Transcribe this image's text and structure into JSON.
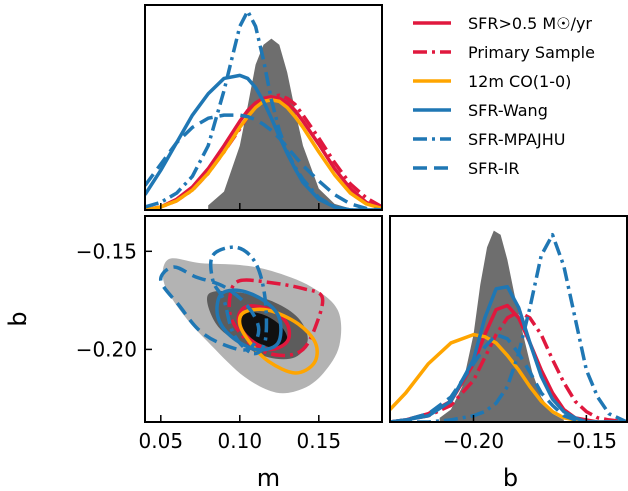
{
  "chart_data": [
    {
      "panel": "top-left",
      "type": "area",
      "description_x": "m",
      "xlim": [
        0.04,
        0.19
      ],
      "x": [
        0.04,
        0.05,
        0.06,
        0.07,
        0.08,
        0.09,
        0.1,
        0.105,
        0.11,
        0.115,
        0.12,
        0.125,
        0.13,
        0.135,
        0.14,
        0.15,
        0.16,
        0.17,
        0.18,
        0.19
      ],
      "series": [
        {
          "name": "SFR>0.5 M☉/yr",
          "color": "#e0183e",
          "style": "solid",
          "values": [
            0.0,
            0.02,
            0.07,
            0.15,
            0.27,
            0.42,
            0.58,
            0.65,
            0.7,
            0.73,
            0.74,
            0.73,
            0.7,
            0.65,
            0.58,
            0.43,
            0.27,
            0.14,
            0.05,
            0.01
          ]
        },
        {
          "name": "Primary Sample",
          "color": "#e0183e",
          "style": "dashdot",
          "values": [
            0.0,
            0.02,
            0.06,
            0.13,
            0.24,
            0.38,
            0.53,
            0.61,
            0.67,
            0.71,
            0.74,
            0.75,
            0.73,
            0.69,
            0.62,
            0.47,
            0.31,
            0.17,
            0.08,
            0.02
          ]
        },
        {
          "name": "12m CO(1-0)",
          "color": "#ffa500",
          "style": "solid",
          "values": [
            0.0,
            0.02,
            0.06,
            0.13,
            0.24,
            0.38,
            0.54,
            0.61,
            0.67,
            0.71,
            0.72,
            0.71,
            0.67,
            0.61,
            0.54,
            0.38,
            0.23,
            0.11,
            0.04,
            0.01
          ]
        },
        {
          "name": "SFR-Wang",
          "color": "#1f77b4",
          "style": "solid",
          "values": [
            0.1,
            0.26,
            0.44,
            0.62,
            0.76,
            0.86,
            0.88,
            0.86,
            0.8,
            0.71,
            0.6,
            0.48,
            0.37,
            0.27,
            0.18,
            0.07,
            0.02,
            0.0,
            0.0,
            0.0
          ]
        },
        {
          "name": "SFR-MPAJHU",
          "color": "#1f77b4",
          "style": "dashdot",
          "values": [
            0.02,
            0.05,
            0.11,
            0.22,
            0.42,
            0.78,
            1.2,
            1.3,
            1.2,
            0.98,
            0.72,
            0.52,
            0.38,
            0.28,
            0.2,
            0.08,
            0.02,
            0.0,
            0.0,
            0.0
          ]
        },
        {
          "name": "SFR-IR",
          "color": "#1f77b4",
          "style": "dashed",
          "values": [
            0.16,
            0.3,
            0.44,
            0.54,
            0.6,
            0.62,
            0.62,
            0.61,
            0.59,
            0.56,
            0.52,
            0.47,
            0.41,
            0.35,
            0.29,
            0.19,
            0.1,
            0.04,
            0.01,
            0.0
          ]
        }
      ],
      "fill_series": {
        "color": "#6e6e6e",
        "x": [
          0.08,
          0.09,
          0.1,
          0.105,
          0.11,
          0.115,
          0.12,
          0.125,
          0.13,
          0.135,
          0.14,
          0.15,
          0.16,
          0.17
        ],
        "values": [
          0.03,
          0.12,
          0.42,
          0.68,
          0.95,
          1.08,
          1.12,
          1.08,
          0.9,
          0.65,
          0.42,
          0.14,
          0.04,
          0.01
        ]
      }
    },
    {
      "panel": "bottom-left",
      "type": "contour",
      "xlabel": "m",
      "ylabel": "b",
      "xlim": [
        0.04,
        0.19
      ],
      "ylim": [
        -0.237,
        -0.132
      ],
      "xticks": [
        0.05,
        0.1,
        0.15
      ],
      "xtick_labels": [
        "0.05",
        "0.10",
        "0.15"
      ],
      "yticks": [
        -0.15,
        -0.2
      ],
      "ytick_labels": [
        "−0.15",
        "−0.20"
      ],
      "filled_contours": [
        {
          "level": "outer",
          "color": "#b3b3b3",
          "points": [
            [
              0.055,
              -0.154
            ],
            [
              0.075,
              -0.156
            ],
            [
              0.1,
              -0.157
            ],
            [
              0.12,
              -0.16
            ],
            [
              0.145,
              -0.168
            ],
            [
              0.162,
              -0.18
            ],
            [
              0.163,
              -0.198
            ],
            [
              0.153,
              -0.212
            ],
            [
              0.14,
              -0.22
            ],
            [
              0.123,
              -0.222
            ],
            [
              0.103,
              -0.214
            ],
            [
              0.082,
              -0.198
            ],
            [
              0.065,
              -0.183
            ],
            [
              0.052,
              -0.166
            ]
          ]
        },
        {
          "level": "middle",
          "color": "#5c5c5c",
          "points": [
            [
              0.08,
              -0.172
            ],
            [
              0.1,
              -0.171
            ],
            [
              0.122,
              -0.176
            ],
            [
              0.137,
              -0.184
            ],
            [
              0.143,
              -0.195
            ],
            [
              0.135,
              -0.204
            ],
            [
              0.118,
              -0.204
            ],
            [
              0.1,
              -0.197
            ],
            [
              0.085,
              -0.187
            ]
          ]
        },
        {
          "level": "inner",
          "color": "#101010",
          "points": [
            [
              0.1,
              -0.181
            ],
            [
              0.114,
              -0.182
            ],
            [
              0.126,
              -0.188
            ],
            [
              0.13,
              -0.196
            ],
            [
              0.12,
              -0.199
            ],
            [
              0.106,
              -0.194
            ],
            [
              0.099,
              -0.187
            ]
          ]
        }
      ],
      "line_contours": [
        {
          "name": "SFR>0.5 M☉/yr",
          "color": "#e0183e",
          "style": "solid",
          "points": [
            [
              0.105,
              -0.178
            ],
            [
              0.12,
              -0.18
            ],
            [
              0.13,
              -0.187
            ],
            [
              0.13,
              -0.196
            ],
            [
              0.118,
              -0.2
            ],
            [
              0.104,
              -0.193
            ],
            [
              0.099,
              -0.184
            ]
          ]
        },
        {
          "name": "Primary Sample",
          "color": "#e0183e",
          "style": "dashdot",
          "points": [
            [
              0.1,
              -0.165
            ],
            [
              0.12,
              -0.166
            ],
            [
              0.14,
              -0.169
            ],
            [
              0.152,
              -0.173
            ],
            [
              0.149,
              -0.186
            ],
            [
              0.14,
              -0.2
            ],
            [
              0.125,
              -0.203
            ],
            [
              0.108,
              -0.198
            ],
            [
              0.095,
              -0.185
            ],
            [
              0.094,
              -0.172
            ]
          ]
        },
        {
          "name": "12m CO(1-0)",
          "color": "#ffa500",
          "style": "solid",
          "points": [
            [
              0.103,
              -0.181
            ],
            [
              0.118,
              -0.18
            ],
            [
              0.137,
              -0.187
            ],
            [
              0.148,
              -0.197
            ],
            [
              0.147,
              -0.207
            ],
            [
              0.135,
              -0.212
            ],
            [
              0.118,
              -0.206
            ],
            [
              0.106,
              -0.196
            ],
            [
              0.1,
              -0.187
            ]
          ]
        },
        {
          "name": "SFR-Wang",
          "color": "#1f77b4",
          "style": "solid",
          "points": [
            [
              0.088,
              -0.172
            ],
            [
              0.1,
              -0.17
            ],
            [
              0.115,
              -0.175
            ],
            [
              0.125,
              -0.184
            ],
            [
              0.124,
              -0.197
            ],
            [
              0.11,
              -0.2
            ],
            [
              0.094,
              -0.193
            ],
            [
              0.086,
              -0.183
            ]
          ]
        },
        {
          "name": "SFR-MPAJHU",
          "color": "#1f77b4",
          "style": "dashdot",
          "points": [
            [
              0.083,
              -0.152
            ],
            [
              0.098,
              -0.148
            ],
            [
              0.11,
              -0.156
            ],
            [
              0.116,
              -0.174
            ],
            [
              0.116,
              -0.196
            ],
            [
              0.108,
              -0.202
            ],
            [
              0.096,
              -0.192
            ],
            [
              0.09,
              -0.175
            ],
            [
              0.083,
              -0.165
            ]
          ]
        },
        {
          "name": "SFR-IR",
          "color": "#1f77b4",
          "style": "dashed",
          "points": [
            [
              0.058,
              -0.158
            ],
            [
              0.072,
              -0.163
            ],
            [
              0.09,
              -0.168
            ],
            [
              0.105,
              -0.178
            ],
            [
              0.112,
              -0.19
            ],
            [
              0.105,
              -0.2
            ],
            [
              0.088,
              -0.197
            ],
            [
              0.074,
              -0.19
            ],
            [
              0.062,
              -0.178
            ],
            [
              0.05,
              -0.165
            ]
          ]
        }
      ]
    },
    {
      "panel": "bottom-right",
      "type": "area",
      "xlabel": "b",
      "xlim": [
        -0.237,
        -0.132
      ],
      "xticks": [
        -0.2,
        -0.15
      ],
      "xtick_labels": [
        "−0.20",
        "−0.15"
      ],
      "x": [
        -0.237,
        -0.23,
        -0.22,
        -0.21,
        -0.2,
        -0.195,
        -0.19,
        -0.185,
        -0.18,
        -0.175,
        -0.17,
        -0.165,
        -0.16,
        -0.155,
        -0.15,
        -0.145,
        -0.14,
        -0.132
      ],
      "series": [
        {
          "name": "SFR>0.5 M☉/yr",
          "color": "#e0183e",
          "style": "solid",
          "values": [
            0.0,
            0.01,
            0.04,
            0.1,
            0.28,
            0.42,
            0.54,
            0.56,
            0.5,
            0.38,
            0.25,
            0.14,
            0.06,
            0.02,
            0.01,
            0.0,
            0.0,
            0.0
          ]
        },
        {
          "name": "Primary Sample",
          "color": "#e0183e",
          "style": "dashdot",
          "values": [
            0.0,
            0.01,
            0.03,
            0.08,
            0.2,
            0.31,
            0.42,
            0.5,
            0.53,
            0.5,
            0.42,
            0.3,
            0.19,
            0.1,
            0.05,
            0.02,
            0.01,
            0.0
          ]
        },
        {
          "name": "12m CO(1-0)",
          "color": "#ffa500",
          "style": "solid",
          "values": [
            0.06,
            0.14,
            0.28,
            0.38,
            0.42,
            0.41,
            0.38,
            0.32,
            0.25,
            0.17,
            0.1,
            0.05,
            0.02,
            0.01,
            0.0,
            0.0,
            0.0,
            0.0
          ]
        },
        {
          "name": "SFR-Wang",
          "color": "#1f77b4",
          "style": "solid",
          "values": [
            0.0,
            0.01,
            0.03,
            0.1,
            0.3,
            0.5,
            0.64,
            0.65,
            0.55,
            0.38,
            0.22,
            0.11,
            0.05,
            0.02,
            0.0,
            0.0,
            0.0,
            0.0
          ]
        },
        {
          "name": "SFR-MPAJHU",
          "color": "#1f77b4",
          "style": "dashdot",
          "values": [
            0.0,
            0.0,
            0.0,
            0.01,
            0.03,
            0.05,
            0.09,
            0.17,
            0.33,
            0.55,
            0.8,
            0.9,
            0.75,
            0.5,
            0.25,
            0.12,
            0.04,
            0.0
          ]
        },
        {
          "name": "SFR-IR",
          "color": "#1f77b4",
          "style": "dashed",
          "values": [
            0.0,
            0.01,
            0.04,
            0.12,
            0.28,
            0.36,
            0.42,
            0.4,
            0.33,
            0.24,
            0.14,
            0.08,
            0.03,
            0.01,
            0.0,
            0.0,
            0.0,
            0.0
          ]
        }
      ],
      "fill_series": {
        "color": "#6e6e6e",
        "x": [
          -0.215,
          -0.21,
          -0.205,
          -0.2,
          -0.197,
          -0.194,
          -0.191,
          -0.188,
          -0.185,
          -0.182,
          -0.178,
          -0.174,
          -0.17,
          -0.165,
          -0.16
        ],
        "values": [
          0.02,
          0.06,
          0.17,
          0.42,
          0.66,
          0.84,
          0.92,
          0.9,
          0.78,
          0.62,
          0.42,
          0.24,
          0.12,
          0.04,
          0.01
        ]
      }
    }
  ],
  "legend": {
    "placement": "top-right",
    "entries": [
      {
        "label": "SFR>0.5 M☉/yr",
        "color": "#e0183e",
        "style": "solid"
      },
      {
        "label": "Primary Sample",
        "color": "#e0183e",
        "style": "dashdot"
      },
      {
        "label": "12m CO(1-0)",
        "color": "#ffa500",
        "style": "solid"
      },
      {
        "label": "SFR-Wang",
        "color": "#1f77b4",
        "style": "solid"
      },
      {
        "label": "SFR-MPAJHU",
        "color": "#1f77b4",
        "style": "dashdot"
      },
      {
        "label": "SFR-IR",
        "color": "#1f77b4",
        "style": "dashed"
      }
    ]
  }
}
